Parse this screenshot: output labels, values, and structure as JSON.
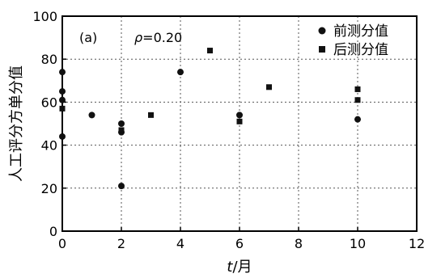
{
  "chart_data": {
    "type": "scatter",
    "panel_label": "(a)",
    "annotation": {
      "symbol": "ρ",
      "text": "=0.20"
    },
    "xlabel": {
      "var": "t",
      "rest": "/月"
    },
    "ylabel": "人工评分方单分值",
    "xlim": [
      0,
      12
    ],
    "ylim": [
      0,
      100
    ],
    "xticks": [
      "0",
      "2",
      "4",
      "6",
      "8",
      "10",
      "12"
    ],
    "yticks": [
      "0",
      "20",
      "40",
      "60",
      "80",
      "100"
    ],
    "grid": true,
    "legend_position": "top-right",
    "series": [
      {
        "name": "前测分值",
        "marker": "circle",
        "points": [
          {
            "x": 0,
            "y": 74
          },
          {
            "x": 0,
            "y": 65
          },
          {
            "x": 0,
            "y": 61
          },
          {
            "x": 0,
            "y": 44
          },
          {
            "x": 1,
            "y": 54
          },
          {
            "x": 2,
            "y": 50
          },
          {
            "x": 2,
            "y": 46
          },
          {
            "x": 2,
            "y": 21
          },
          {
            "x": 4,
            "y": 74
          },
          {
            "x": 6,
            "y": 54
          },
          {
            "x": 10,
            "y": 52
          }
        ]
      },
      {
        "name": "后测分值",
        "marker": "square",
        "points": [
          {
            "x": 0,
            "y": 57
          },
          {
            "x": 2,
            "y": 47
          },
          {
            "x": 3,
            "y": 54
          },
          {
            "x": 5,
            "y": 84
          },
          {
            "x": 6,
            "y": 51
          },
          {
            "x": 7,
            "y": 67
          },
          {
            "x": 10,
            "y": 66
          },
          {
            "x": 10,
            "y": 61
          }
        ]
      }
    ]
  }
}
